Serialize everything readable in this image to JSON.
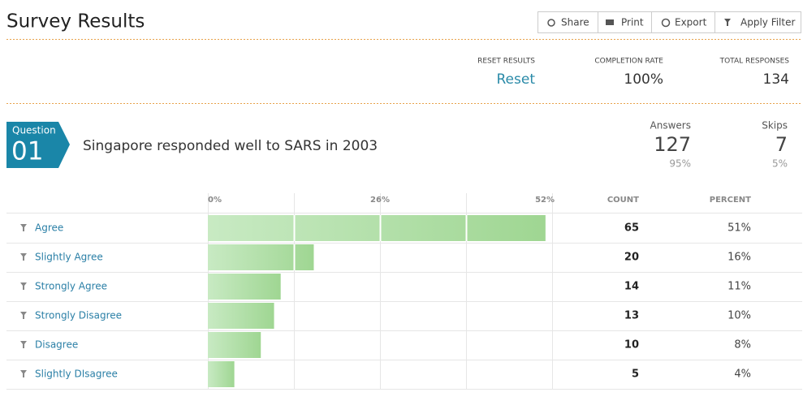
{
  "header": {
    "title": "Survey Results",
    "buttons": [
      "Share",
      "Print",
      "Export",
      "Apply Filter"
    ]
  },
  "stats": [
    {
      "label": "RESET RESULTS",
      "value": "Reset"
    },
    {
      "label": "COMPLETION RATE",
      "value": "100%"
    },
    {
      "label": "TOTAL RESPONSES",
      "value": "134"
    }
  ],
  "question": {
    "badge": "Question",
    "number": "01",
    "text": "Singapore responded well to SARS in 2003",
    "answers": {
      "label": "Answers",
      "value": "127",
      "percent": "95%"
    },
    "skips": {
      "label": "Skips",
      "value": "7",
      "percent": "5%"
    }
  },
  "chart_data": {
    "type": "hbar",
    "categories": [
      "Agree",
      "Slightly Agree",
      "Strongly Agree",
      "Strongly Disagree",
      "Disagree",
      "Slightly DIsagree"
    ],
    "counts": [
      65,
      20,
      14,
      13,
      10,
      5
    ],
    "values": [
      51,
      16,
      11,
      10,
      8,
      4
    ],
    "value_labels": [
      "51%",
      "16%",
      "11%",
      "10%",
      "8%",
      "4%"
    ],
    "columns": [
      "COUNT",
      "PERCENT"
    ],
    "xlim": [
      0,
      52
    ],
    "xticks": [
      {
        "value": 0,
        "label": "0%"
      },
      {
        "value": 26,
        "label": "26%"
      },
      {
        "value": 52,
        "label": "52%"
      }
    ],
    "grid_lines": [
      0,
      13,
      26,
      39,
      52
    ],
    "color": "#b3e0a9"
  }
}
